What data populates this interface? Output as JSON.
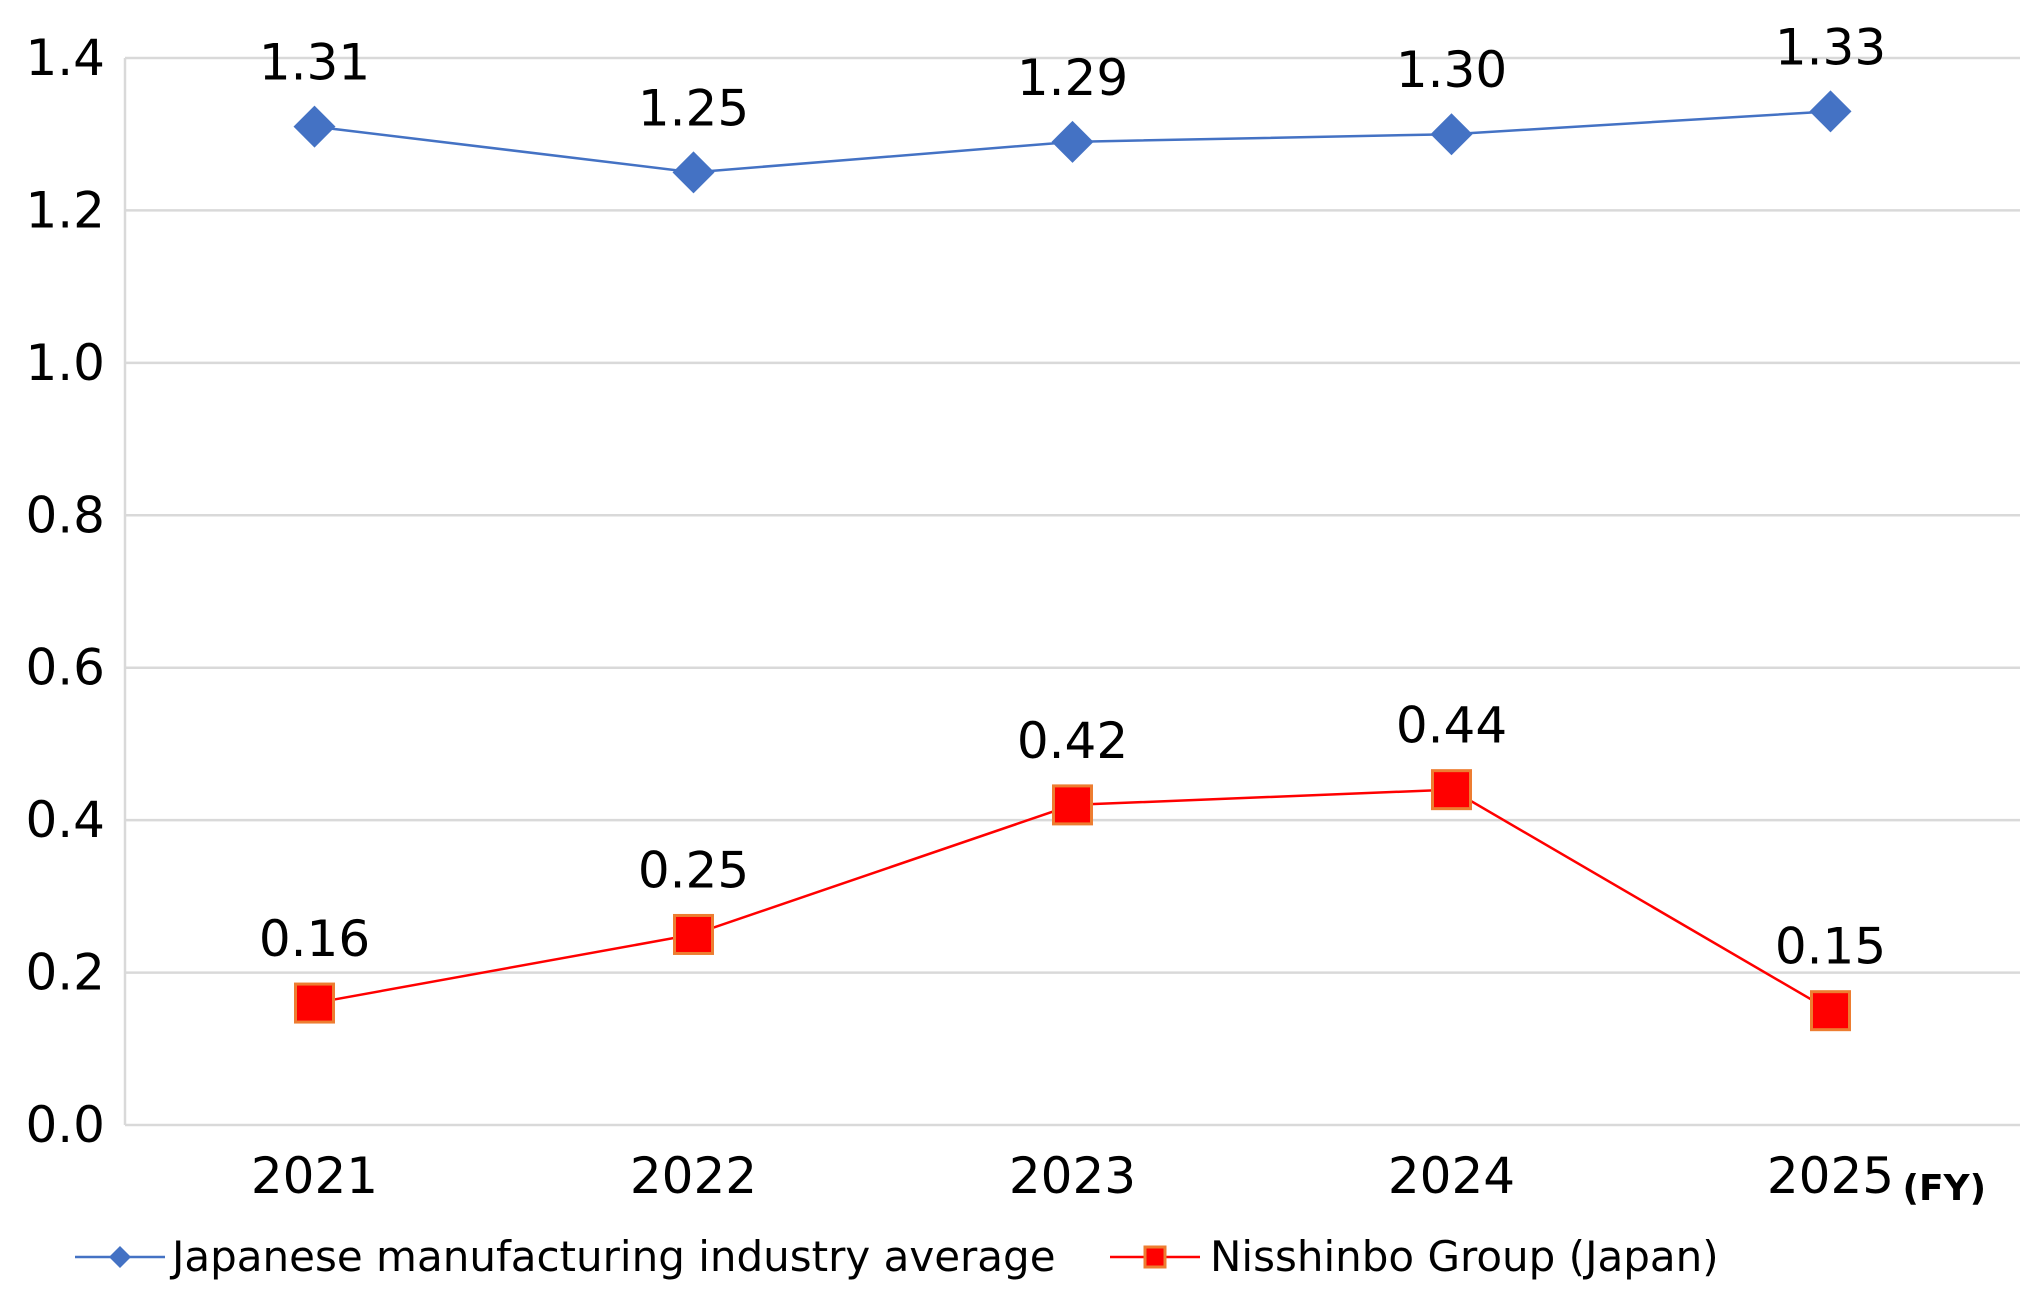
{
  "chart_data": {
    "type": "line",
    "categories": [
      "2021",
      "2022",
      "2023",
      "2024",
      "2025"
    ],
    "x_unit_label": "(FY)",
    "ylim": [
      0.0,
      1.4
    ],
    "yticks": [
      "0.0",
      "0.2",
      "0.4",
      "0.6",
      "0.8",
      "1.0",
      "1.2",
      "1.4"
    ],
    "grid": true,
    "legend_position": "bottom",
    "series": [
      {
        "name": "Japanese manufacturing industry average",
        "values": [
          1.31,
          1.25,
          1.29,
          1.3,
          1.33
        ],
        "labels": [
          "1.31",
          "1.25",
          "1.29",
          "1.30",
          "1.33"
        ],
        "color": "#4472C4",
        "marker": "diamond"
      },
      {
        "name": "Nisshinbo Group (Japan)",
        "values": [
          0.16,
          0.25,
          0.42,
          0.44,
          0.15
        ],
        "labels": [
          "0.16",
          "0.25",
          "0.42",
          "0.44",
          "0.15"
        ],
        "color": "#FF0000",
        "marker_edge": "#ED7D31",
        "marker": "square"
      }
    ]
  }
}
